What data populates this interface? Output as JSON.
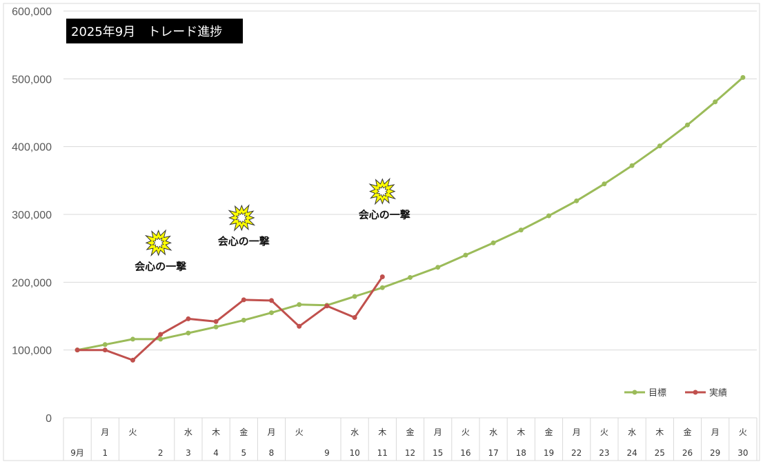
{
  "chart_data": {
    "type": "line",
    "title": "2025年9月　トレード進捗",
    "ylim": [
      0,
      600000
    ],
    "yticks": [
      "0",
      "100,000",
      "200,000",
      "300,000",
      "400,000",
      "500,000",
      "600,000"
    ],
    "categories": [
      {
        "day": "",
        "num": "9月"
      },
      {
        "day": "月",
        "num": "1"
      },
      {
        "day": "火",
        "num": ""
      },
      {
        "day": "",
        "num": "2"
      },
      {
        "day": "水",
        "num": "3"
      },
      {
        "day": "木",
        "num": "4"
      },
      {
        "day": "金",
        "num": "5"
      },
      {
        "day": "月",
        "num": "8"
      },
      {
        "day": "火",
        "num": ""
      },
      {
        "day": "",
        "num": "9"
      },
      {
        "day": "水",
        "num": "10"
      },
      {
        "day": "木",
        "num": "11"
      },
      {
        "day": "金",
        "num": "12"
      },
      {
        "day": "月",
        "num": "15"
      },
      {
        "day": "火",
        "num": "16"
      },
      {
        "day": "水",
        "num": "17"
      },
      {
        "day": "木",
        "num": "18"
      },
      {
        "day": "金",
        "num": "19"
      },
      {
        "day": "月",
        "num": "22"
      },
      {
        "day": "火",
        "num": "23"
      },
      {
        "day": "水",
        "num": "24"
      },
      {
        "day": "木",
        "num": "25"
      },
      {
        "day": "金",
        "num": "26"
      },
      {
        "day": "月",
        "num": "29"
      },
      {
        "day": "火",
        "num": "30"
      }
    ],
    "series": [
      {
        "name": "目標",
        "color": "#9bbb59",
        "values": [
          100000,
          108000,
          116000,
          116000,
          125000,
          134000,
          144000,
          155000,
          167000,
          166000,
          179000,
          192000,
          207000,
          222000,
          240000,
          258000,
          277000,
          298000,
          320000,
          345000,
          372000,
          401000,
          432000,
          466000,
          502000
        ]
      },
      {
        "name": "実績",
        "color": "#c0504d",
        "values": [
          100000,
          100000,
          85000,
          123000,
          146000,
          142000,
          174000,
          173000,
          135000,
          165000,
          148000,
          208000,
          null,
          null,
          null,
          null,
          null,
          null,
          null,
          null,
          null,
          null,
          null,
          null,
          null
        ]
      }
    ],
    "annotations": [
      {
        "text": "会心の一撃",
        "category_index": 3,
        "y": 258000
      },
      {
        "text": "会心の一撃",
        "category_index": 6,
        "y": 295000
      },
      {
        "text": "会心の一撃",
        "category_index": 11,
        "y": 334000
      }
    ],
    "grid": true,
    "legend": "bottom-right"
  }
}
